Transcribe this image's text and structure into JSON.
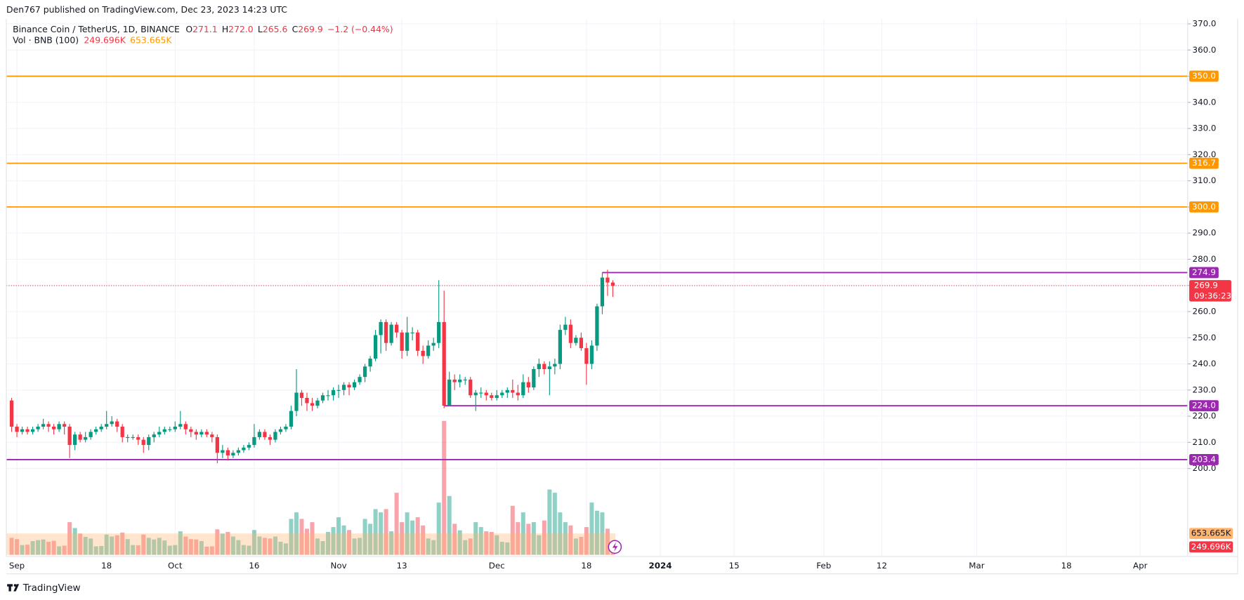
{
  "header": "Den767 published on TradingView.com, Dec 23, 2023 14:23 UTC",
  "legend": {
    "symbol": "Binance Coin / TetherUS, 1D, BINANCE",
    "o_label": "O",
    "o": "271.1",
    "h_label": "H",
    "h": "272.0",
    "l_label": "L",
    "l": "265.6",
    "c_label": "C",
    "c": "269.9",
    "change": "−1.2 (−0.44%)",
    "volume_name": "Vol · BNB (100)",
    "volume": "249.696K",
    "volume_ma": "653.665K"
  },
  "footer": "TradingView",
  "chart_data": {
    "type": "candlestick",
    "up_color": "#089981",
    "down_color": "#f23645",
    "x": [
      "2023-08-31",
      "2023-09-01",
      "2023-09-02",
      "2023-09-03",
      "2023-09-04",
      "2023-09-05",
      "2023-09-06",
      "2023-09-07",
      "2023-09-08",
      "2023-09-09",
      "2023-09-10",
      "2023-09-11",
      "2023-09-12",
      "2023-09-13",
      "2023-09-14",
      "2023-09-15",
      "2023-09-16",
      "2023-09-17",
      "2023-09-18",
      "2023-09-19",
      "2023-09-20",
      "2023-09-21",
      "2023-09-22",
      "2023-09-23",
      "2023-09-24",
      "2023-09-25",
      "2023-09-26",
      "2023-09-27",
      "2023-09-28",
      "2023-09-29",
      "2023-09-30",
      "2023-10-01",
      "2023-10-02",
      "2023-10-03",
      "2023-10-04",
      "2023-10-05",
      "2023-10-06",
      "2023-10-07",
      "2023-10-08",
      "2023-10-09",
      "2023-10-10",
      "2023-10-11",
      "2023-10-12",
      "2023-10-13",
      "2023-10-14",
      "2023-10-15",
      "2023-10-16",
      "2023-10-17",
      "2023-10-18",
      "2023-10-19",
      "2023-10-20",
      "2023-10-21",
      "2023-10-22",
      "2023-10-23",
      "2023-10-24",
      "2023-10-25",
      "2023-10-26",
      "2023-10-27",
      "2023-10-28",
      "2023-10-29",
      "2023-10-30",
      "2023-10-31",
      "2023-11-01",
      "2023-11-02",
      "2023-11-03",
      "2023-11-04",
      "2023-11-05",
      "2023-11-06",
      "2023-11-07",
      "2023-11-08",
      "2023-11-09",
      "2023-11-10",
      "2023-11-11",
      "2023-11-12",
      "2023-11-13",
      "2023-11-14",
      "2023-11-15",
      "2023-11-16",
      "2023-11-17",
      "2023-11-18",
      "2023-11-19",
      "2023-11-20",
      "2023-11-21",
      "2023-11-22",
      "2023-11-23",
      "2023-11-24",
      "2023-11-25",
      "2023-11-26",
      "2023-11-27",
      "2023-11-28",
      "2023-11-29",
      "2023-11-30",
      "2023-12-01",
      "2023-12-02",
      "2023-12-03",
      "2023-12-04",
      "2023-12-05",
      "2023-12-06",
      "2023-12-07",
      "2023-12-08",
      "2023-12-09",
      "2023-12-10",
      "2023-12-11",
      "2023-12-12",
      "2023-12-13",
      "2023-12-14",
      "2023-12-15",
      "2023-12-16",
      "2023-12-17",
      "2023-12-18",
      "2023-12-19",
      "2023-12-20",
      "2023-12-21",
      "2023-12-22",
      "2023-12-23"
    ],
    "open": [
      226,
      216,
      214,
      215,
      214,
      215,
      216,
      217,
      216,
      215,
      217,
      216,
      209,
      213,
      211,
      212,
      214,
      215,
      216,
      217,
      218,
      216,
      212,
      212,
      212,
      211,
      209,
      212,
      213,
      214,
      215,
      215,
      216,
      217,
      215,
      214,
      213,
      214,
      213,
      212,
      206,
      207,
      205,
      206,
      207,
      208,
      209,
      212,
      214,
      212,
      211,
      214,
      215,
      216,
      222,
      229,
      227,
      225,
      224,
      226,
      228,
      228,
      230,
      230,
      232,
      231,
      233,
      235,
      239,
      242,
      251,
      256,
      248,
      255,
      252,
      245,
      252,
      252,
      245,
      243,
      247,
      248,
      256,
      224,
      234,
      233,
      234,
      234,
      228,
      229,
      229,
      228,
      227,
      228,
      229,
      230,
      229,
      228,
      233,
      231,
      238,
      240,
      238,
      239,
      240,
      253,
      255,
      248,
      250,
      246,
      240,
      247,
      262,
      273,
      271.1
    ],
    "high": [
      227,
      217,
      216,
      216,
      216,
      217,
      219,
      218,
      217,
      218,
      218,
      217,
      214,
      214,
      214,
      215,
      216,
      217,
      222,
      220,
      219,
      217,
      213,
      213,
      213,
      212,
      213,
      214,
      216,
      216,
      216,
      218,
      222,
      218,
      216,
      215,
      215,
      215,
      214,
      213,
      209,
      208,
      207,
      208,
      209,
      210,
      217,
      215,
      215,
      213,
      215,
      216,
      217,
      224,
      238,
      230,
      229,
      227,
      227,
      229,
      230,
      231,
      232,
      233,
      233,
      234,
      236,
      240,
      243,
      253,
      257,
      257,
      256,
      256,
      253,
      258,
      254,
      253,
      247,
      249,
      250,
      272,
      268,
      237,
      236,
      236,
      235,
      235,
      230,
      231,
      230,
      229,
      230,
      230,
      231,
      234,
      232,
      236,
      235,
      239,
      242,
      241,
      241,
      242,
      255,
      258,
      257,
      251,
      252,
      248,
      249,
      263,
      275,
      276,
      272
    ],
    "low": [
      214,
      212,
      213,
      213,
      213,
      214,
      215,
      214,
      213,
      214,
      213,
      204,
      207,
      210,
      210,
      211,
      213,
      214,
      215,
      216,
      214,
      210,
      210,
      211,
      209,
      206,
      207,
      210,
      212,
      213,
      214,
      214,
      215,
      213,
      212,
      211,
      212,
      212,
      210,
      202,
      204,
      203,
      204,
      205,
      206,
      207,
      208,
      211,
      211,
      209,
      210,
      213,
      214,
      215,
      220,
      224,
      222,
      222,
      223,
      225,
      226,
      226,
      227,
      228,
      228,
      230,
      232,
      233,
      237,
      241,
      244,
      245,
      247,
      250,
      242,
      243,
      249,
      243,
      240,
      242,
      245,
      246,
      223,
      224,
      230,
      231,
      232,
      227,
      222,
      227,
      226,
      226,
      226,
      227,
      227,
      227,
      226,
      227,
      229,
      230,
      235,
      236,
      228,
      236,
      238,
      251,
      246,
      247,
      245,
      232,
      238,
      245,
      259,
      266,
      265.6
    ],
    "close": [
      216,
      214,
      215,
      214,
      215,
      216,
      217,
      216,
      215,
      217,
      216,
      209,
      213,
      211,
      212,
      214,
      215,
      216,
      217,
      218,
      216,
      212,
      212,
      212,
      211,
      209,
      212,
      213,
      214,
      215,
      215,
      216,
      217,
      215,
      214,
      213,
      214,
      213,
      212,
      206,
      207,
      205,
      206,
      207,
      208,
      209,
      212,
      214,
      212,
      211,
      214,
      215,
      216,
      222,
      229,
      227,
      225,
      224,
      226,
      228,
      228,
      230,
      230,
      232,
      231,
      233,
      235,
      239,
      242,
      251,
      256,
      248,
      255,
      252,
      245,
      252,
      252,
      245,
      243,
      247,
      248,
      256,
      224,
      234,
      233,
      234,
      234,
      228,
      229,
      229,
      228,
      227,
      228,
      229,
      230,
      229,
      228,
      233,
      231,
      238,
      240,
      238,
      239,
      240,
      253,
      255,
      248,
      250,
      246,
      240,
      247,
      262,
      273,
      271.1,
      269.9
    ],
    "volume": [
      520000,
      480000,
      300000,
      310000,
      420000,
      450000,
      470000,
      400000,
      430000,
      260000,
      280000,
      1000000,
      820000,
      650000,
      550000,
      500000,
      260000,
      270000,
      620000,
      560000,
      600000,
      680000,
      480000,
      300000,
      290000,
      620000,
      520000,
      470000,
      520000,
      440000,
      280000,
      300000,
      720000,
      560000,
      480000,
      470000,
      420000,
      250000,
      260000,
      780000,
      650000,
      700000,
      560000,
      450000,
      300000,
      280000,
      760000,
      560000,
      520000,
      500000,
      560000,
      400000,
      350000,
      1100000,
      1300000,
      1100000,
      800000,
      1000000,
      500000,
      420000,
      700000,
      850000,
      1150000,
      900000,
      760000,
      500000,
      520000,
      1100000,
      950000,
      1400000,
      1300000,
      1400000,
      720000,
      1900000,
      1000000,
      1300000,
      1050000,
      1150000,
      900000,
      500000,
      450000,
      1600000,
      4100000,
      1800000,
      950000,
      750000,
      450000,
      500000,
      1000000,
      850000,
      720000,
      700000,
      600000,
      400000,
      380000,
      1500000,
      1000000,
      1300000,
      950000,
      1000000,
      600000,
      1050000,
      2000000,
      1900000,
      1300000,
      1000000,
      900000,
      500000,
      550000,
      850000,
      1600000,
      1350000,
      1300000,
      800000,
      249696
    ],
    "last_volume_label": "249.696K",
    "volume_ma": 653665,
    "volume_ma_label": "653.665K",
    "volume_ma_color": "#ffb570",
    "xlim": [
      "2023-08-30",
      "2024-04-10"
    ],
    "xticks": [
      {
        "value": "2023-09-01",
        "label": "Sep"
      },
      {
        "value": "2023-09-18",
        "label": "18"
      },
      {
        "value": "2023-10-01",
        "label": "Oct"
      },
      {
        "value": "2023-10-16",
        "label": "16"
      },
      {
        "value": "2023-11-01",
        "label": "Nov"
      },
      {
        "value": "2023-11-13",
        "label": "13"
      },
      {
        "value": "2023-12-01",
        "label": "Dec"
      },
      {
        "value": "2023-12-18",
        "label": "18"
      },
      {
        "value": "2024-01-01",
        "label": "2024"
      },
      {
        "value": "2024-01-15",
        "label": "15"
      },
      {
        "value": "2024-02-01",
        "label": "Feb"
      },
      {
        "value": "2024-02-12",
        "label": "12"
      },
      {
        "value": "2024-03-01",
        "label": "Mar"
      },
      {
        "value": "2024-03-18",
        "label": "18"
      },
      {
        "value": "2024-04-01",
        "label": "Apr"
      }
    ],
    "ylim": [
      167,
      372
    ],
    "yticks": [
      {
        "value": 200,
        "label": "200.0"
      },
      {
        "value": 210,
        "label": "210.0"
      },
      {
        "value": 220,
        "label": "220.0"
      },
      {
        "value": 230,
        "label": "230.0"
      },
      {
        "value": 240,
        "label": "240.0"
      },
      {
        "value": 250,
        "label": "250.0"
      },
      {
        "value": 260,
        "label": "260.0"
      },
      {
        "value": 270,
        "label": "270.0"
      },
      {
        "value": 280,
        "label": "280.0"
      },
      {
        "value": 290,
        "label": "290.0"
      },
      {
        "value": 300,
        "label": "300.0"
      },
      {
        "value": 310,
        "label": "310.0"
      },
      {
        "value": 320,
        "label": "320.0"
      },
      {
        "value": 330,
        "label": "330.0"
      },
      {
        "value": 340,
        "label": "340.0"
      },
      {
        "value": 350,
        "label": "350.0"
      },
      {
        "value": 360,
        "label": "360.0"
      },
      {
        "value": 370,
        "label": "370.0"
      }
    ],
    "grid": true,
    "levels": [
      {
        "value": 350,
        "label": "350.0",
        "color": "#ff9800"
      },
      {
        "value": 316.7,
        "label": "316.7",
        "color": "#ff9800"
      },
      {
        "value": 300,
        "label": "300.0",
        "color": "#ff9800"
      },
      {
        "value": 274.9,
        "label": "274.9",
        "color": "#9c27b0",
        "from": "2023-12-21"
      },
      {
        "value": 224,
        "label": "224.0",
        "color": "#9c27b0",
        "from": "2023-11-21"
      },
      {
        "value": 203.4,
        "label": "203.4",
        "color": "#9c27b0"
      }
    ],
    "last_price": 269.9,
    "countdown": "09:36:23"
  }
}
